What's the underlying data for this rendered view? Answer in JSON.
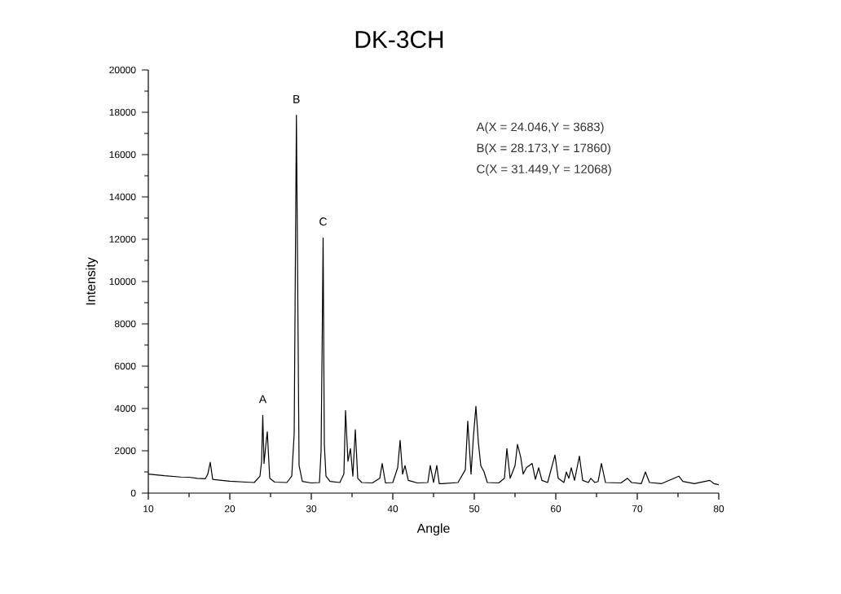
{
  "chart_data": {
    "type": "line",
    "title": "DK-3CH",
    "xlabel": "Angle",
    "ylabel": "Intensity",
    "x": [
      10,
      12,
      14,
      15,
      16,
      17,
      17.3,
      17.6,
      17.9,
      19,
      20,
      22,
      23,
      23.7,
      23.9,
      24.046,
      24.2,
      24.4,
      24.6,
      24.9,
      25.5,
      27,
      27.6,
      27.9,
      28.173,
      28.5,
      28.9,
      30,
      31,
      31.2,
      31.35,
      31.449,
      31.6,
      31.8,
      32.3,
      33.5,
      34,
      34.2,
      34.5,
      34.8,
      35.1,
      35.4,
      35.7,
      36.2,
      37.5,
      38.4,
      38.7,
      39.1,
      40,
      40.6,
      40.9,
      41.2,
      41.5,
      41.9,
      43,
      44.3,
      44.6,
      45,
      45.4,
      45.7,
      46.1,
      48,
      48.9,
      49.2,
      49.6,
      49.9,
      50.2,
      50.5,
      50.8,
      51.2,
      51.6,
      53,
      53.7,
      54,
      54.4,
      55,
      55.3,
      55.7,
      56,
      56.4,
      57.1,
      57.5,
      57.9,
      58.3,
      59,
      59.9,
      60.3,
      61,
      61.3,
      61.6,
      61.9,
      62.3,
      62.9,
      63.3,
      64,
      64.3,
      64.8,
      65.2,
      65.6,
      66.1,
      68,
      68.8,
      69.3,
      70.5,
      71,
      71.5,
      73,
      75.1,
      75.6,
      77,
      78.9,
      79.4,
      80
    ],
    "values": [
      900,
      820,
      760,
      750,
      700,
      680,
      900,
      1460,
      650,
      600,
      560,
      520,
      500,
      800,
      1500,
      3683,
      1400,
      2200,
      2900,
      700,
      520,
      500,
      800,
      2800,
      17860,
      1300,
      550,
      480,
      500,
      2000,
      7800,
      12068,
      2300,
      800,
      550,
      500,
      900,
      3900,
      1500,
      2100,
      800,
      3000,
      700,
      500,
      480,
      700,
      1400,
      480,
      500,
      1200,
      2500,
      900,
      1300,
      600,
      480,
      500,
      1300,
      500,
      1300,
      450,
      450,
      500,
      1100,
      3400,
      900,
      2700,
      4100,
      2400,
      1300,
      1000,
      500,
      480,
      700,
      2100,
      700,
      1300,
      2300,
      1700,
      900,
      1200,
      1400,
      650,
      1200,
      600,
      500,
      1800,
      700,
      500,
      1000,
      700,
      1200,
      600,
      1750,
      600,
      500,
      700,
      500,
      550,
      1400,
      500,
      480,
      700,
      500,
      450,
      1000,
      500,
      450,
      800,
      550,
      450,
      600,
      450,
      400
    ],
    "color": "#000000",
    "line_style": "solid",
    "xlim": [
      10,
      80
    ],
    "ylim": [
      0,
      20000
    ],
    "xticks": [
      10,
      20,
      30,
      40,
      50,
      60,
      70,
      80
    ],
    "yticks": [
      0,
      2000,
      4000,
      6000,
      8000,
      10000,
      12000,
      14000,
      16000,
      18000,
      20000
    ],
    "annotations": [
      {
        "text": "A",
        "x": 24.046,
        "y": 3683
      },
      {
        "text": "B",
        "x": 28.173,
        "y": 17860
      },
      {
        "text": "C",
        "x": 31.449,
        "y": 12068
      },
      "A(X = 24.046,Y = 3683)",
      "B(X = 28.173,Y = 17860)",
      "C(X = 31.449,Y = 12068)"
    ]
  }
}
